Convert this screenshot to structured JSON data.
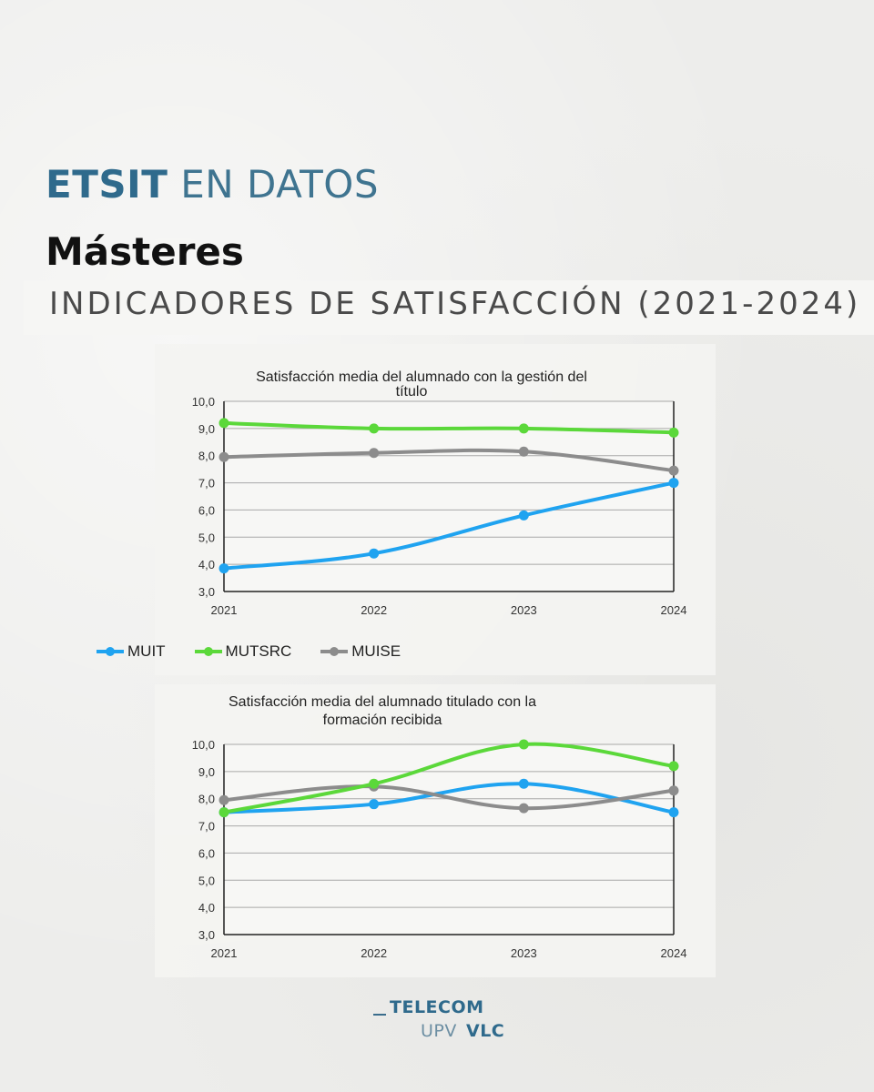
{
  "header": {
    "brand_bold": "ETSIT",
    "brand_rest": "EN DATOS",
    "section": "Másteres",
    "banner": "INDICADORES DE SATISFACCIÓN (2021-2024)"
  },
  "colors": {
    "MUIT": "#1fa3f0",
    "MUTSRC": "#5bd83a",
    "MUISE": "#8c8c8c",
    "brand": "#2f6a8c"
  },
  "chart_data": [
    {
      "type": "line",
      "title_lines": [
        "Satisfacción media del alumnado con la gestión del",
        "título"
      ],
      "x": [
        "2021",
        "2022",
        "2023",
        "2024"
      ],
      "ylim": [
        3.0,
        10.0
      ],
      "yticks": [
        "10,0",
        "9,0",
        "8,0",
        "7,0",
        "6,0",
        "5,0",
        "4,0",
        "3,0"
      ],
      "grid": true,
      "legend_position": "bottom",
      "series": [
        {
          "name": "MUIT",
          "values": [
            3.85,
            4.4,
            5.8,
            7.0
          ]
        },
        {
          "name": "MUTSRC",
          "values": [
            9.2,
            9.0,
            9.0,
            8.85
          ]
        },
        {
          "name": "MUISE",
          "values": [
            7.95,
            8.1,
            8.15,
            7.45
          ]
        }
      ]
    },
    {
      "type": "line",
      "title_lines": [
        "Satisfacción media del alumnado titulado con la",
        "formación recibida"
      ],
      "x": [
        "2021",
        "2022",
        "2023",
        "2024"
      ],
      "ylim": [
        3.0,
        10.0
      ],
      "yticks": [
        "10,0",
        "9,0",
        "8,0",
        "7,0",
        "6,0",
        "5,0",
        "4,0",
        "3,0"
      ],
      "grid": true,
      "series": [
        {
          "name": "MUIT",
          "values": [
            7.5,
            7.8,
            8.55,
            7.5
          ]
        },
        {
          "name": "MUTSRC",
          "values": [
            7.5,
            8.55,
            10.0,
            9.2
          ]
        },
        {
          "name": "MUISE",
          "values": [
            7.95,
            8.45,
            7.65,
            8.3
          ]
        }
      ]
    }
  ],
  "legend": [
    {
      "name": "MUIT"
    },
    {
      "name": "MUTSRC"
    },
    {
      "name": "MUISE"
    }
  ],
  "logo": {
    "line1": "TELECOM",
    "upv": "UPV",
    "vlc": "VLC"
  }
}
